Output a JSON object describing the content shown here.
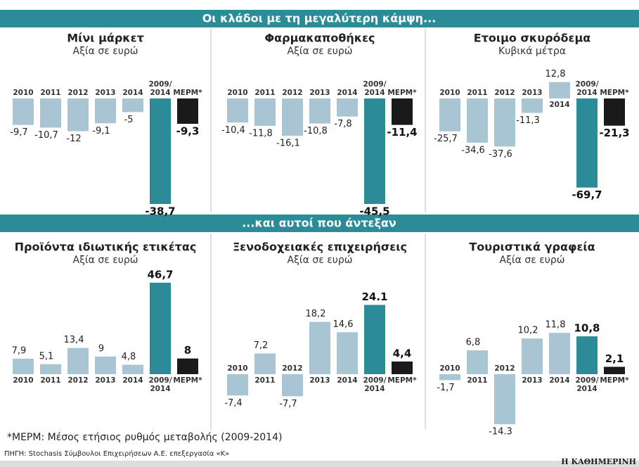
{
  "sections": [
    "Οι κλάδοι με τη μεγαλύτερη κάμψη...",
    "...και αυτοί που άντεξαν"
  ],
  "footnote": "*ΜΕΡΜ: Μέσος ετήσιος ρυθμός μεταβολής (2009-2014)",
  "source": "ΠΗΓΗ: Stochasis Σύμβουλοι Επιχειρήσεων Α.Ε. επεξεργασία «Κ»",
  "brand": "Η ΚΑΘΗΜΕΡΙΝΗ",
  "chart_data": [
    {
      "type": "bar",
      "title": "Μίνι μάρκετ",
      "subtitle": "Αξία σε ευρώ",
      "categories": [
        "2010",
        "2011",
        "2012",
        "2013",
        "2014",
        "2009/\n2014",
        "ΜΕΡΜ*"
      ],
      "values": [
        -9.7,
        -10.7,
        -12,
        -9.1,
        -5,
        -38.7,
        -9.3
      ],
      "value_labels": [
        "-9,7",
        "-10,7",
        "-12",
        "-9,1",
        "-5",
        "-38,7",
        "-9,3"
      ],
      "colors": [
        "#a9c5d3",
        "#a9c5d3",
        "#a9c5d3",
        "#a9c5d3",
        "#a9c5d3",
        "#2b8c98",
        "#1a1a1a"
      ]
    },
    {
      "type": "bar",
      "title": "Φαρμακαποθήκες",
      "subtitle": "Αξία σε ευρώ",
      "categories": [
        "2010",
        "2011",
        "2012",
        "2013",
        "2014",
        "2009/\n2014",
        "ΜΕΡΜ*"
      ],
      "values": [
        -10.4,
        -11.8,
        -16.1,
        -10.8,
        -7.8,
        -45.5,
        -11.4
      ],
      "value_labels": [
        "-10,4",
        "-11,8",
        "-16,1",
        "-10,8",
        "-7,8",
        "-45,5",
        "-11,4"
      ],
      "colors": [
        "#a9c5d3",
        "#a9c5d3",
        "#a9c5d3",
        "#a9c5d3",
        "#a9c5d3",
        "#2b8c98",
        "#1a1a1a"
      ]
    },
    {
      "type": "bar",
      "title": "Ετοιμο σκυρόδεμα",
      "subtitle": "Κυβικά μέτρα",
      "categories": [
        "2010",
        "2011",
        "2012",
        "2013",
        "2014",
        "2009/\n2014",
        "ΜΕΡΜ*"
      ],
      "values": [
        -25.7,
        -34.6,
        -37.6,
        -11.3,
        12.8,
        -69.7,
        -21.3
      ],
      "value_labels": [
        "-25,7",
        "-34,6",
        "-37,6",
        "-11,3",
        "12,8",
        "-69,7",
        "-21,3"
      ],
      "colors": [
        "#a9c5d3",
        "#a9c5d3",
        "#a9c5d3",
        "#a9c5d3",
        "#a9c5d3",
        "#2b8c98",
        "#1a1a1a"
      ]
    },
    {
      "type": "bar",
      "title": "Προϊόντα ιδιωτικής ετικέτας",
      "subtitle": "Αξία σε ευρώ",
      "categories": [
        "2010",
        "2011",
        "2012",
        "2013",
        "2014",
        "2009/\n2014",
        "ΜΕΡΜ*"
      ],
      "values": [
        7.9,
        5.1,
        13.4,
        9,
        4.8,
        46.7,
        8
      ],
      "value_labels": [
        "7,9",
        "5,1",
        "13,4",
        "9",
        "4,8",
        "46,7",
        "8"
      ],
      "colors": [
        "#a9c5d3",
        "#a9c5d3",
        "#a9c5d3",
        "#a9c5d3",
        "#a9c5d3",
        "#2b8c98",
        "#1a1a1a"
      ]
    },
    {
      "type": "bar",
      "title": "Ξενοδοχειακές επιχειρήσεις",
      "subtitle": "Αξία σε ευρώ",
      "categories": [
        "2010",
        "2011",
        "2012",
        "2013",
        "2014",
        "2009/\n2014",
        "ΜΕΡΜ*"
      ],
      "values": [
        -7.4,
        7.2,
        -7.7,
        18.2,
        14.6,
        24.1,
        4.4
      ],
      "value_labels": [
        "-7,4",
        "7,2",
        "-7,7",
        "18,2",
        "14,6",
        "24.1",
        "4,4"
      ],
      "colors": [
        "#a9c5d3",
        "#a9c5d3",
        "#a9c5d3",
        "#a9c5d3",
        "#a9c5d3",
        "#2b8c98",
        "#1a1a1a"
      ]
    },
    {
      "type": "bar",
      "title": "Τουριστικά γραφεία",
      "subtitle": "Αξία σε ευρώ",
      "categories": [
        "2010",
        "2011",
        "2012",
        "2013",
        "2014",
        "2009/\n2014",
        "ΜΕΡΜ*"
      ],
      "values": [
        -1.7,
        6.8,
        -14.3,
        10.2,
        11.8,
        10.8,
        2.1
      ],
      "value_labels": [
        "-1,7",
        "6,8",
        "-14.3",
        "10,2",
        "11,8",
        "10,8",
        "2,1"
      ],
      "colors": [
        "#a9c5d3",
        "#a9c5d3",
        "#a9c5d3",
        "#a9c5d3",
        "#a9c5d3",
        "#2b8c98",
        "#1a1a1a"
      ]
    }
  ]
}
